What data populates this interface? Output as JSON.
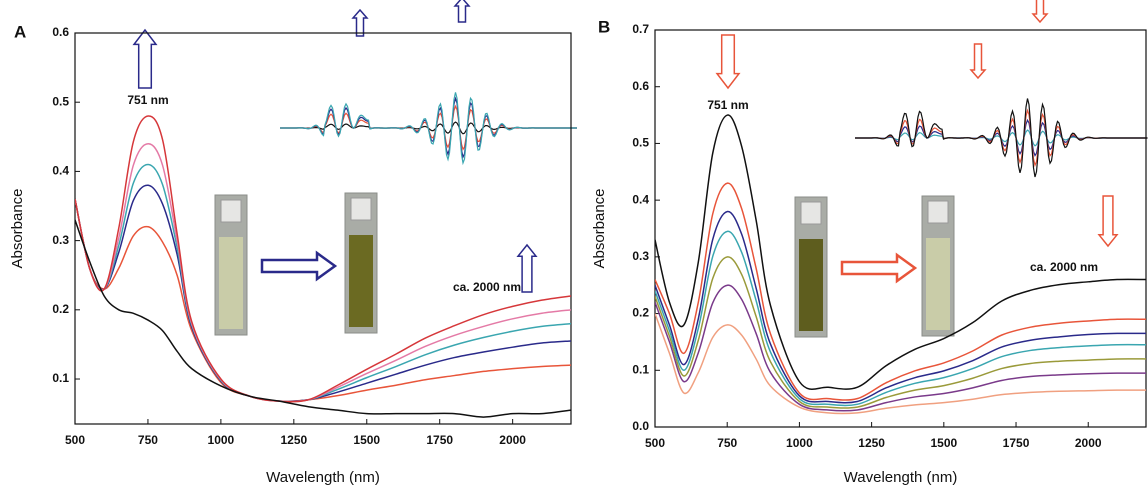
{
  "chart_data": [
    {
      "type": "line",
      "panel_label": "A",
      "xlabel": "Wavelength (nm)",
      "ylabel": "Absorbance",
      "annotations": [
        "751 nm",
        "ca. 2000 nm"
      ],
      "x": [
        500,
        550,
        600,
        650,
        700,
        751,
        800,
        850,
        900,
        1000,
        1100,
        1200,
        1300,
        1400,
        1500,
        1600,
        1700,
        1800,
        1900,
        2000,
        2100,
        2200
      ],
      "xlim": [
        500,
        2200
      ],
      "xticks": [
        500,
        750,
        1000,
        1250,
        1500,
        1750,
        2000
      ],
      "ylim": [
        0.035,
        0.6
      ],
      "yticks": [
        0.1,
        0.2,
        0.3,
        0.4,
        0.5,
        0.6
      ],
      "series": [
        {
          "color": "#e8553a",
          "values": [
            0.36,
            0.26,
            0.23,
            0.26,
            0.307,
            0.32,
            0.298,
            0.25,
            0.17,
            0.095,
            0.075,
            0.068,
            0.07,
            0.076,
            0.084,
            0.091,
            0.099,
            0.105,
            0.111,
            0.115,
            0.118,
            0.12
          ]
        },
        {
          "color": "#2a2a8a",
          "values": [
            0.36,
            0.26,
            0.23,
            0.283,
            0.358,
            0.38,
            0.353,
            0.28,
            0.175,
            0.097,
            0.075,
            0.068,
            0.07,
            0.081,
            0.094,
            0.107,
            0.12,
            0.131,
            0.139,
            0.146,
            0.152,
            0.155
          ]
        },
        {
          "color": "#3aa6b0",
          "values": [
            0.36,
            0.26,
            0.23,
            0.293,
            0.383,
            0.41,
            0.381,
            0.29,
            0.178,
            0.098,
            0.075,
            0.068,
            0.07,
            0.085,
            0.102,
            0.118,
            0.135,
            0.149,
            0.16,
            0.169,
            0.176,
            0.18
          ]
        },
        {
          "color": "#e47aa6",
          "values": [
            0.36,
            0.26,
            0.23,
            0.304,
            0.409,
            0.44,
            0.409,
            0.3,
            0.18,
            0.099,
            0.075,
            0.068,
            0.07,
            0.088,
            0.108,
            0.127,
            0.147,
            0.163,
            0.176,
            0.187,
            0.195,
            0.2
          ]
        },
        {
          "color": "#d6373a",
          "values": [
            0.36,
            0.26,
            0.23,
            0.318,
            0.443,
            0.48,
            0.446,
            0.31,
            0.183,
            0.1,
            0.075,
            0.068,
            0.07,
            0.091,
            0.114,
            0.136,
            0.159,
            0.177,
            0.193,
            0.205,
            0.214,
            0.22
          ]
        },
        {
          "color": "#111111",
          "values": [
            0.33,
            0.27,
            0.22,
            0.2,
            0.195,
            0.185,
            0.17,
            0.14,
            0.115,
            0.09,
            0.075,
            0.068,
            0.06,
            0.055,
            0.05,
            0.05,
            0.05,
            0.05,
            0.045,
            0.05,
            0.05,
            0.055
          ]
        }
      ]
    },
    {
      "type": "line",
      "panel_label": "B",
      "xlabel": "Wavelength (nm)",
      "ylabel": "Absorbance",
      "annotations": [
        "751 nm",
        "ca. 2000 nm"
      ],
      "x": [
        500,
        550,
        600,
        650,
        700,
        751,
        800,
        850,
        900,
        1000,
        1100,
        1200,
        1300,
        1400,
        1500,
        1600,
        1700,
        1800,
        1900,
        2000,
        2100,
        2200
      ],
      "xlim": [
        500,
        2200
      ],
      "xticks": [
        500,
        750,
        1000,
        1250,
        1500,
        1750,
        2000
      ],
      "ylim": [
        0,
        0.7
      ],
      "yticks": [
        {
          "value": 0,
          "label": "0.0"
        },
        0.1,
        0.2,
        0.3,
        0.4,
        0.5,
        0.6,
        0.7
      ],
      "series": [
        {
          "color": "#f0a080",
          "values": [
            0.2,
            0.13,
            0.06,
            0.096,
            0.158,
            0.18,
            0.162,
            0.12,
            0.072,
            0.035,
            0.025,
            0.025,
            0.033,
            0.039,
            0.043,
            0.049,
            0.057,
            0.061,
            0.063,
            0.064,
            0.065,
            0.065
          ]
        },
        {
          "color": "#7a3a8a",
          "values": [
            0.22,
            0.15,
            0.08,
            0.131,
            0.219,
            0.25,
            0.225,
            0.165,
            0.096,
            0.04,
            0.03,
            0.03,
            0.043,
            0.053,
            0.059,
            0.069,
            0.082,
            0.089,
            0.092,
            0.094,
            0.095,
            0.095
          ]
        },
        {
          "color": "#9a9a3a",
          "values": [
            0.23,
            0.16,
            0.09,
            0.153,
            0.262,
            0.3,
            0.269,
            0.195,
            0.115,
            0.045,
            0.035,
            0.035,
            0.052,
            0.065,
            0.073,
            0.086,
            0.103,
            0.112,
            0.116,
            0.118,
            0.12,
            0.12
          ]
        },
        {
          "color": "#3aa6b0",
          "values": [
            0.24,
            0.17,
            0.1,
            0.174,
            0.301,
            0.345,
            0.308,
            0.223,
            0.132,
            0.05,
            0.04,
            0.04,
            0.061,
            0.077,
            0.087,
            0.103,
            0.124,
            0.135,
            0.14,
            0.143,
            0.145,
            0.145
          ]
        },
        {
          "color": "#2a2a8a",
          "values": [
            0.25,
            0.18,
            0.11,
            0.191,
            0.331,
            0.38,
            0.34,
            0.245,
            0.146,
            0.055,
            0.045,
            0.045,
            0.069,
            0.087,
            0.099,
            0.117,
            0.141,
            0.153,
            0.159,
            0.163,
            0.165,
            0.165
          ]
        },
        {
          "color": "#e8553a",
          "values": [
            0.26,
            0.2,
            0.13,
            0.22,
            0.376,
            0.43,
            0.385,
            0.28,
            0.164,
            0.06,
            0.05,
            0.05,
            0.078,
            0.099,
            0.113,
            0.134,
            0.162,
            0.176,
            0.183,
            0.187,
            0.19,
            0.19
          ]
        },
        {
          "color": "#111111",
          "values": [
            0.33,
            0.22,
            0.18,
            0.291,
            0.483,
            0.55,
            0.495,
            0.365,
            0.214,
            0.08,
            0.07,
            0.07,
            0.108,
            0.137,
            0.156,
            0.184,
            0.222,
            0.241,
            0.251,
            0.256,
            0.26,
            0.26
          ]
        }
      ]
    }
  ]
}
